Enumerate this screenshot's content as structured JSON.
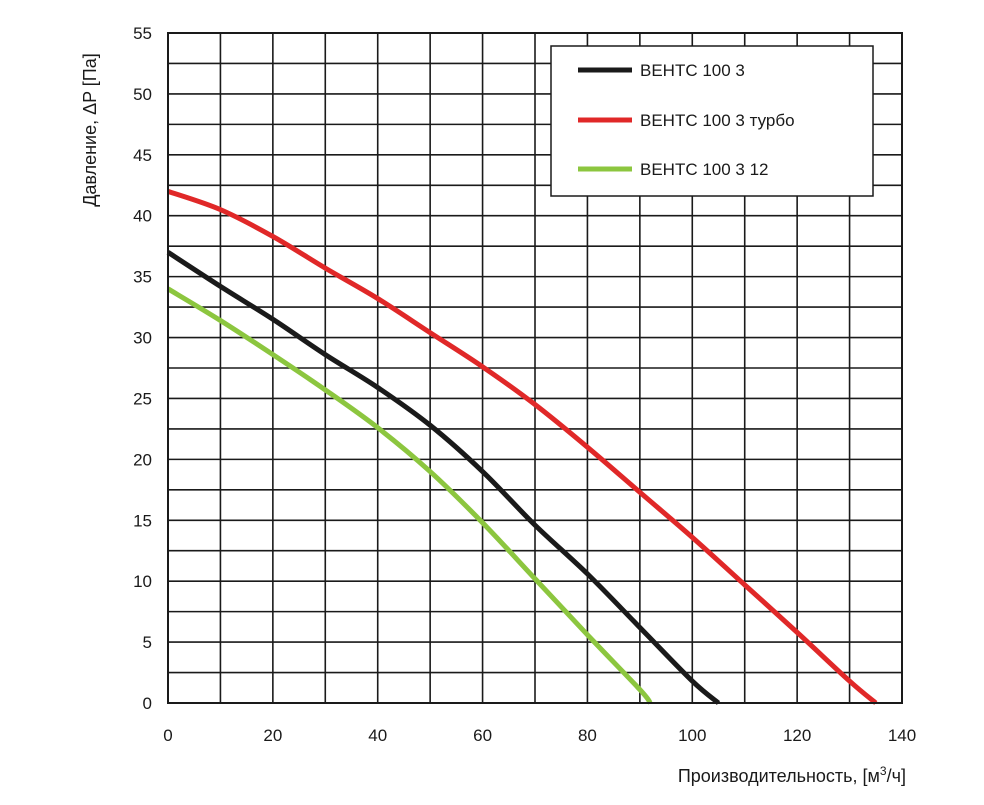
{
  "chart_data": {
    "type": "line",
    "xlabel": "Производительность, [м³/ч]",
    "ylabel": "Давление, ΔP [Па]",
    "xlim": [
      0,
      140
    ],
    "ylim": [
      0,
      55
    ],
    "x_ticks": [
      0,
      20,
      40,
      60,
      80,
      100,
      120,
      140
    ],
    "y_ticks": [
      0,
      5,
      10,
      15,
      20,
      25,
      30,
      35,
      40,
      45,
      50,
      55
    ],
    "grid": {
      "x_step": 10,
      "y_step": 2.5
    },
    "legend_position": "top-right",
    "series": [
      {
        "name": "ВЕНТС 100 3",
        "color": "#1a1a1a",
        "points": [
          [
            0,
            37
          ],
          [
            10,
            34.2
          ],
          [
            20,
            31.5
          ],
          [
            30,
            28.6
          ],
          [
            40,
            25.9
          ],
          [
            50,
            22.8
          ],
          [
            60,
            19
          ],
          [
            70,
            14.6
          ],
          [
            80,
            10.6
          ],
          [
            90,
            6.2
          ],
          [
            100,
            1.8
          ],
          [
            105,
            0
          ]
        ]
      },
      {
        "name": "ВЕНТС 100 3 турбо",
        "color": "#e02828",
        "points": [
          [
            0,
            42
          ],
          [
            10,
            40.5
          ],
          [
            20,
            38.3
          ],
          [
            30,
            35.7
          ],
          [
            40,
            33.2
          ],
          [
            50,
            30.4
          ],
          [
            60,
            27.6
          ],
          [
            70,
            24.5
          ],
          [
            80,
            21
          ],
          [
            90,
            17.3
          ],
          [
            100,
            13.6
          ],
          [
            110,
            9.7
          ],
          [
            120,
            5.8
          ],
          [
            130,
            1.8
          ],
          [
            135,
            0
          ]
        ]
      },
      {
        "name": "ВЕНТС 100 3 12",
        "color": "#8cc63f",
        "points": [
          [
            0,
            34
          ],
          [
            10,
            31.4
          ],
          [
            20,
            28.6
          ],
          [
            30,
            25.7
          ],
          [
            40,
            22.6
          ],
          [
            50,
            19
          ],
          [
            60,
            14.8
          ],
          [
            70,
            10.2
          ],
          [
            80,
            5.6
          ],
          [
            90,
            1.1
          ],
          [
            92,
            0
          ]
        ]
      }
    ]
  }
}
